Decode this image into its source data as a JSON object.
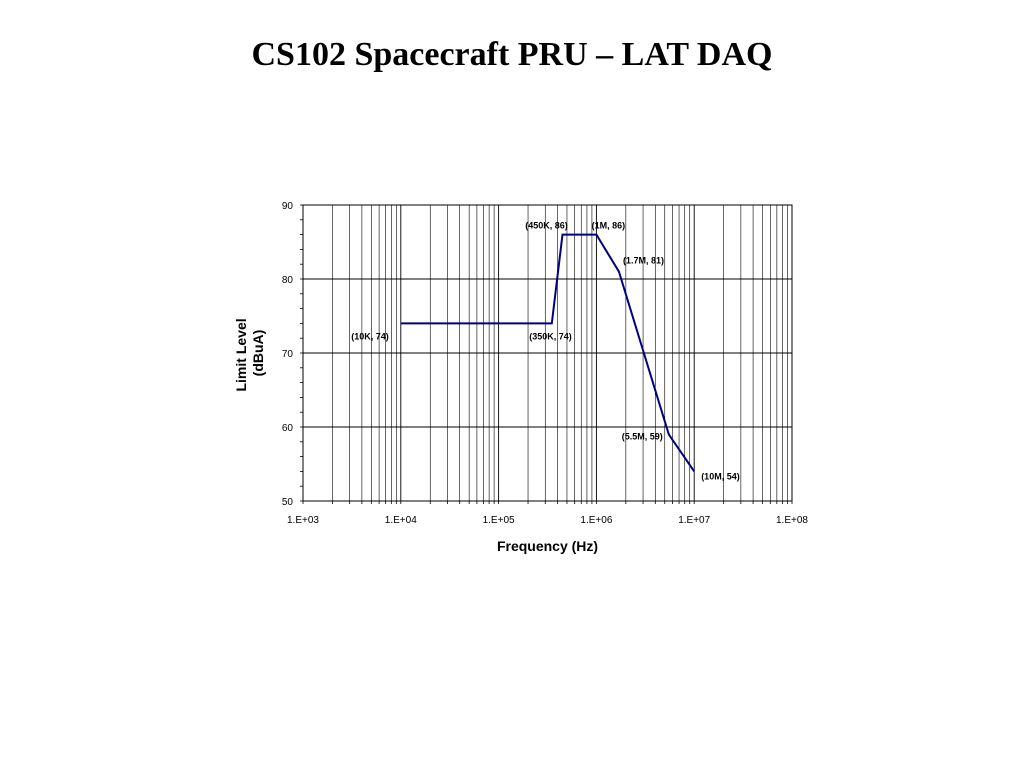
{
  "slide": {
    "title": "CS102 Spacecraft PRU – LAT DAQ"
  },
  "chart_data": {
    "type": "line",
    "title": "",
    "xlabel": "Frequency (Hz)",
    "ylabel": [
      "Limit Level",
      "(dBuA)"
    ],
    "x_scale": "log",
    "xlim": [
      1000,
      100000000
    ],
    "ylim": [
      50,
      90
    ],
    "x_ticks": [
      1000,
      10000,
      100000,
      1000000,
      10000000,
      100000000
    ],
    "x_tick_labels": [
      "1.E+03",
      "1.E+04",
      "1.E+05",
      "1.E+06",
      "1.E+07",
      "1.E+08"
    ],
    "y_ticks": [
      50,
      60,
      70,
      80,
      90
    ],
    "y_tick_labels": [
      "50",
      "60",
      "70",
      "80",
      "90"
    ],
    "grid": true,
    "line_color": "#000080",
    "series": [
      {
        "points": [
          {
            "x": 10000,
            "y": 74
          },
          {
            "x": 350000,
            "y": 74
          },
          {
            "x": 450000,
            "y": 86
          },
          {
            "x": 1000000,
            "y": 86
          },
          {
            "x": 1700000,
            "y": 81
          },
          {
            "x": 5500000,
            "y": 59
          },
          {
            "x": 10000000,
            "y": 54
          }
        ]
      }
    ],
    "annotations": [
      {
        "text": "(10K, 74)",
        "x": 10000,
        "y": 74
      },
      {
        "text": "(350K, 74)",
        "x": 350000,
        "y": 74
      },
      {
        "text": "(450K, 86)",
        "x": 450000,
        "y": 86
      },
      {
        "text": "(1M, 86)",
        "x": 1000000,
        "y": 86
      },
      {
        "text": "(1.7M, 81)",
        "x": 1700000,
        "y": 81
      },
      {
        "text": "(5.5M, 59)",
        "x": 5500000,
        "y": 59
      },
      {
        "text": "(10M, 54)",
        "x": 10000000,
        "y": 54
      }
    ]
  }
}
